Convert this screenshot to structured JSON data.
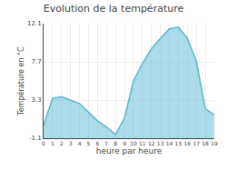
{
  "chart_data": {
    "type": "area",
    "title": "Evolution de la température",
    "xlabel": "heure par heure",
    "ylabel": "Température en °C",
    "x": [
      0,
      1,
      2,
      3,
      4,
      5,
      6,
      7,
      8,
      9,
      10,
      11,
      12,
      13,
      14,
      15,
      16,
      17,
      18,
      19
    ],
    "values": [
      0.4,
      3.5,
      3.7,
      3.3,
      2.9,
      1.9,
      0.9,
      0.2,
      -0.7,
      1.2,
      5.5,
      7.5,
      9.2,
      10.4,
      11.5,
      11.7,
      10.4,
      7.8,
      2.3,
      1.6
    ],
    "color": "#5ab8d4",
    "xlim": [
      0,
      19
    ],
    "xticks": [
      0,
      1,
      2,
      3,
      4,
      5,
      6,
      7,
      8,
      9,
      10,
      11,
      12,
      13,
      14,
      15,
      16,
      17,
      18,
      19
    ],
    "ylim": [
      -1.1,
      12.1
    ],
    "yticks": [
      -1.1,
      3.3,
      7.7,
      12.1
    ],
    "grid": true
  }
}
